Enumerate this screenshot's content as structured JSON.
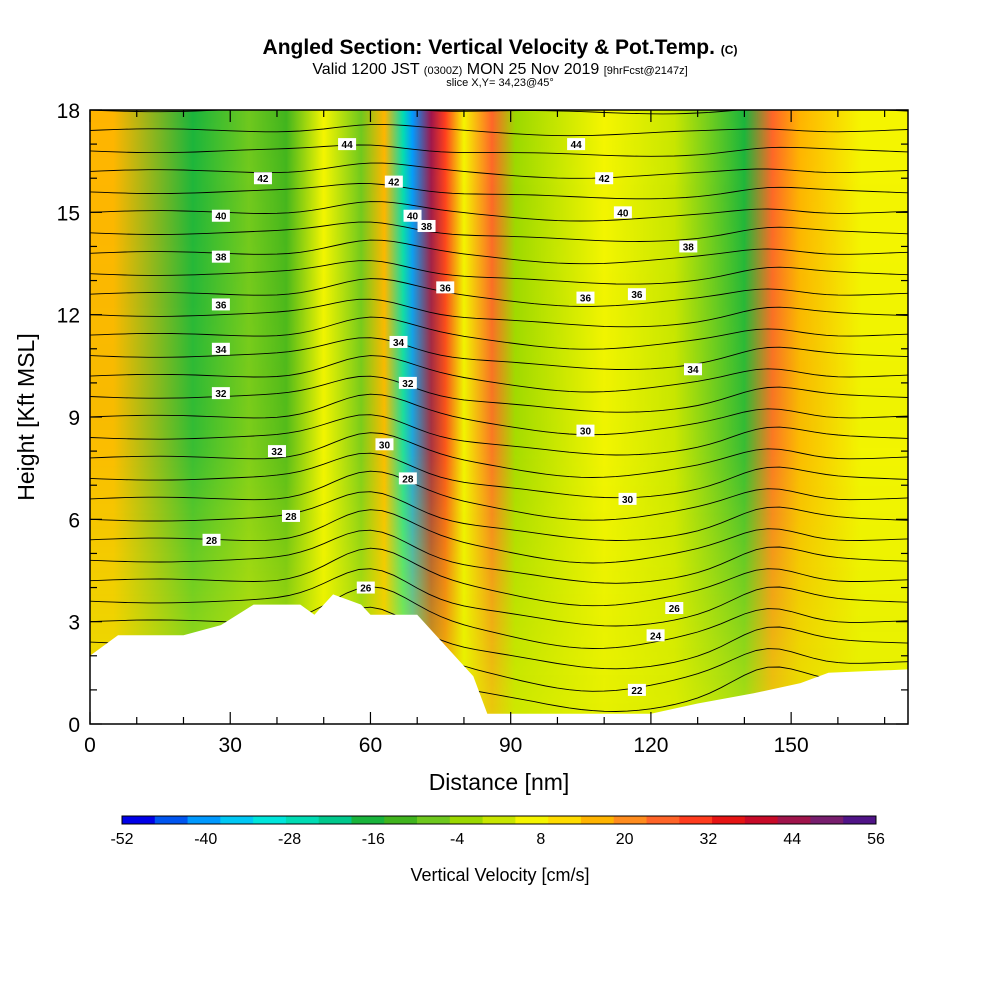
{
  "title": {
    "main": "Angled Section: Vertical Velocity & Pot.Temp.",
    "copyright": "(C)",
    "valid_prefix": "Valid 1200 JST",
    "valid_utc": "(0300Z)",
    "valid_date": "MON 25 Nov 2019",
    "forecast": "[9hrFcst@2147z]",
    "slice": "slice X,Y= 34,23@45°"
  },
  "chart_data": {
    "type": "heatmap",
    "title": "Angled Section: Vertical Velocity & Pot.Temp.",
    "xlabel": "Distance [nm]",
    "ylabel": "Height [Kft MSL]",
    "xlim": [
      0,
      175
    ],
    "ylim": [
      0,
      18
    ],
    "xticks": [
      "0",
      "30",
      "60",
      "90",
      "120",
      "150"
    ],
    "yticks": [
      "0",
      "3",
      "6",
      "9",
      "12",
      "15",
      "18"
    ],
    "colorbar": {
      "label": "Vertical Velocity [cm/s]",
      "range": [
        -52,
        56
      ],
      "ticks": [
        "-52",
        "-40",
        "-28",
        "-16",
        "-4",
        "8",
        "20",
        "32",
        "44",
        "56"
      ],
      "colors": [
        "#0000e8",
        "#0055f0",
        "#0099ff",
        "#00c8f5",
        "#00e6dc",
        "#00dcb4",
        "#00c88c",
        "#19b43c",
        "#40b41e",
        "#6ec81e",
        "#9bd800",
        "#c8e600",
        "#f5f500",
        "#ffdc00",
        "#ffb400",
        "#ff8c1e",
        "#ff6428",
        "#ff3c1e",
        "#e61414",
        "#c80a28",
        "#a0144b",
        "#781e6e",
        "#501487"
      ]
    },
    "vertical_velocity_columns": [
      {
        "x": 5,
        "w": 14
      },
      {
        "x": 22,
        "w": -16
      },
      {
        "x": 34,
        "w": -6
      },
      {
        "x": 42,
        "w": -10
      },
      {
        "x": 50,
        "w": 6
      },
      {
        "x": 58,
        "w": -8
      },
      {
        "x": 63,
        "w": 14
      },
      {
        "x": 67,
        "w": -28
      },
      {
        "x": 69,
        "w": -40
      },
      {
        "x": 73,
        "w": 44
      },
      {
        "x": 76,
        "w": 32
      },
      {
        "x": 80,
        "w": 6
      },
      {
        "x": 86,
        "w": 24
      },
      {
        "x": 91,
        "w": -4
      },
      {
        "x": 110,
        "w": 6
      },
      {
        "x": 125,
        "w": 4
      },
      {
        "x": 140,
        "w": -16
      },
      {
        "x": 146,
        "w": 24
      },
      {
        "x": 152,
        "w": 14
      },
      {
        "x": 165,
        "w": 8
      }
    ],
    "potential_temperature_labels": [
      "22",
      "24",
      "26",
      "26",
      "28",
      "28",
      "28",
      "30",
      "30",
      "30",
      "32",
      "32",
      "32",
      "34",
      "34",
      "34",
      "36",
      "36",
      "36",
      "36",
      "38",
      "38",
      "38",
      "40",
      "40",
      "40",
      "42",
      "42",
      "42",
      "44",
      "44"
    ],
    "terrain_height_kft": [
      {
        "x": 0,
        "h": 2.0
      },
      {
        "x": 3,
        "h": 2.3
      },
      {
        "x": 6,
        "h": 2.6
      },
      {
        "x": 12,
        "h": 2.6
      },
      {
        "x": 20,
        "h": 2.6
      },
      {
        "x": 28,
        "h": 2.9
      },
      {
        "x": 35,
        "h": 3.5
      },
      {
        "x": 45,
        "h": 3.5
      },
      {
        "x": 48,
        "h": 3.2
      },
      {
        "x": 52,
        "h": 3.8
      },
      {
        "x": 58,
        "h": 3.5
      },
      {
        "x": 60,
        "h": 3.2
      },
      {
        "x": 70,
        "h": 3.2
      },
      {
        "x": 74,
        "h": 2.6
      },
      {
        "x": 78,
        "h": 2.0
      },
      {
        "x": 82,
        "h": 1.4
      },
      {
        "x": 85,
        "h": 0.3
      },
      {
        "x": 95,
        "h": 0.3
      },
      {
        "x": 105,
        "h": 0.3
      },
      {
        "x": 120,
        "h": 0.3
      },
      {
        "x": 130,
        "h": 0.6
      },
      {
        "x": 142,
        "h": 0.9
      },
      {
        "x": 152,
        "h": 1.2
      },
      {
        "x": 158,
        "h": 1.5
      },
      {
        "x": 175,
        "h": 1.6
      }
    ]
  }
}
